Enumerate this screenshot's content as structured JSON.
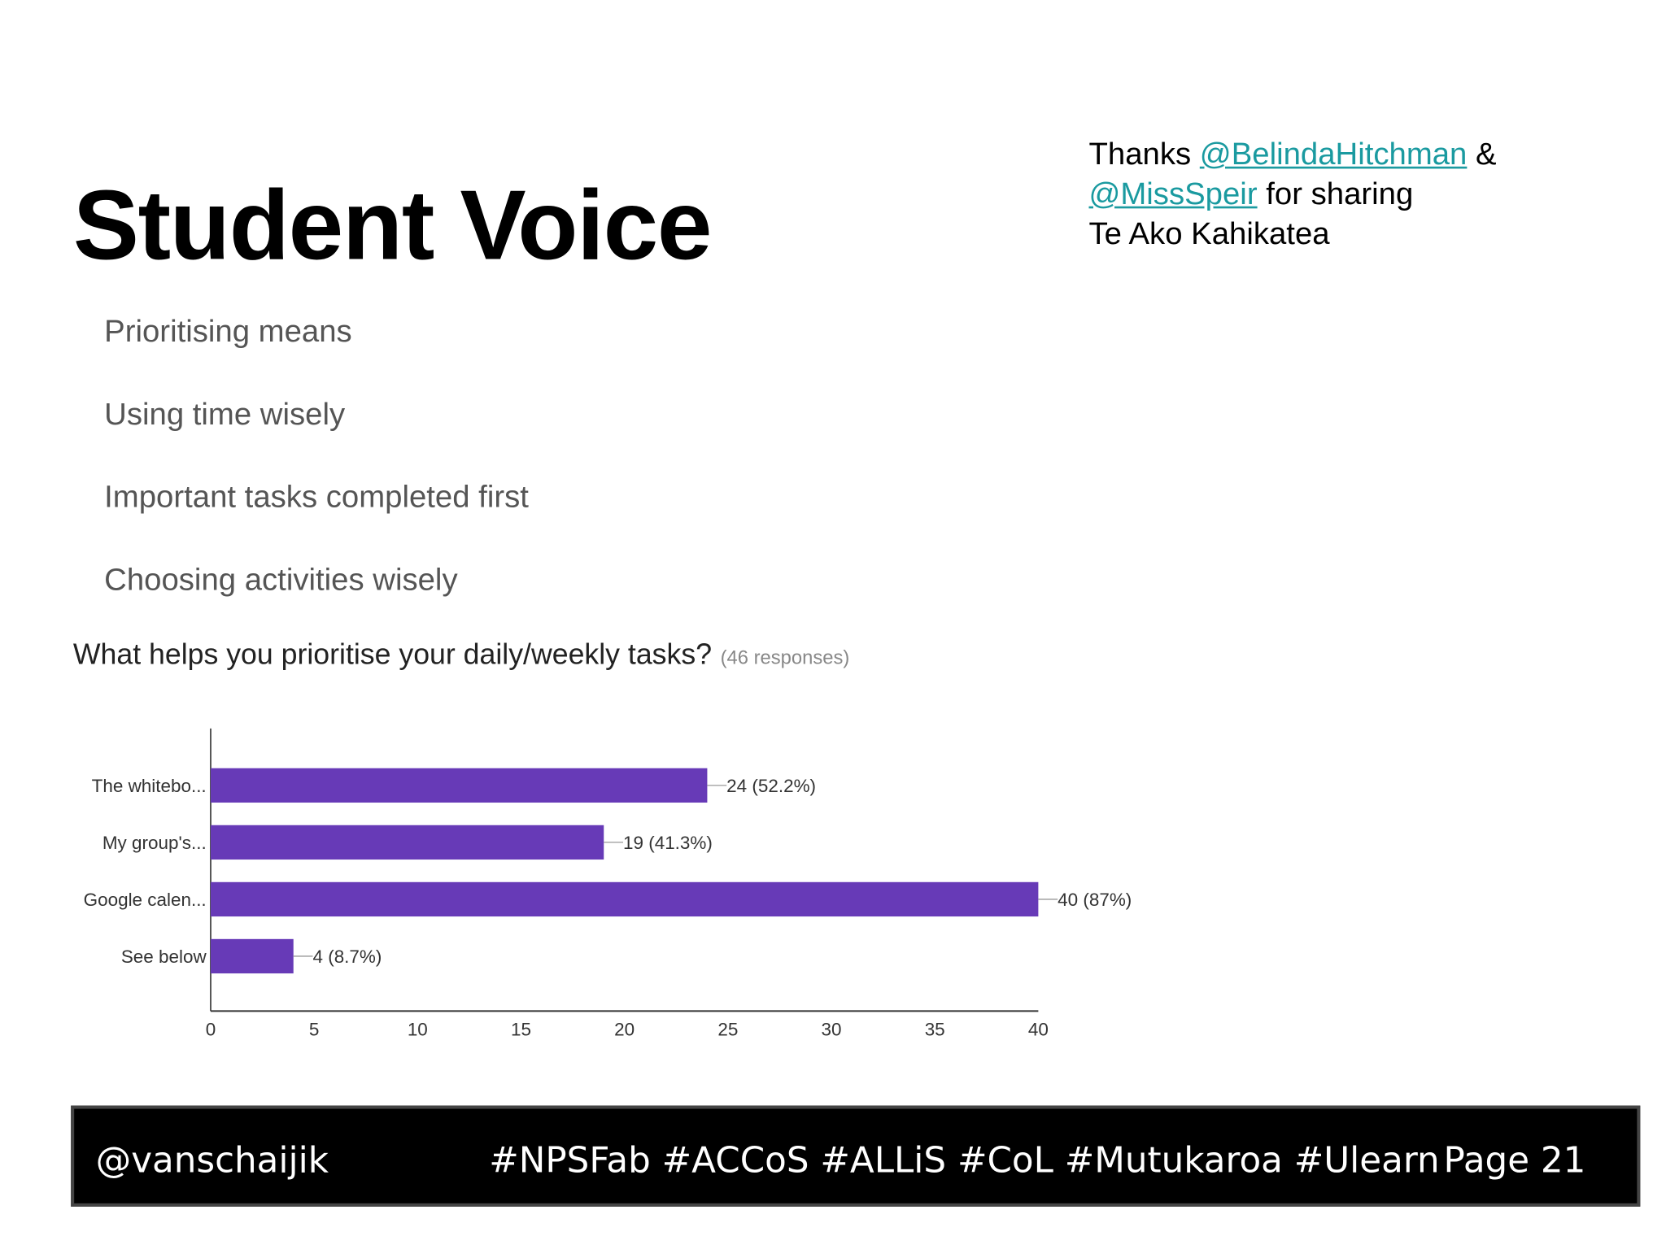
{
  "slide": {
    "title": "Student Voice",
    "credits": {
      "thanks": "Thanks ",
      "user1": "@BelindaHitchman",
      "amp": " &",
      "user2": "@MissSpeir",
      "for_sharing": " for sharing",
      "org": "Te Ako Kahikatea"
    },
    "bullets": [
      "Prioritising means",
      "Using time wisely",
      "Important tasks completed first",
      "Choosing activities wisely"
    ],
    "question": "What helps you prioritise your daily/weekly tasks?",
    "responses": "(46 responses)"
  },
  "chart_data": {
    "type": "bar",
    "orientation": "horizontal",
    "categories": [
      "The whitebo...",
      "My group's...",
      "Google calen...",
      "See below"
    ],
    "values": [
      24,
      19,
      40,
      4
    ],
    "data_labels": [
      "24 (52.2%)",
      "19 (41.3%)",
      "40 (87%)",
      "4 (8.7%)"
    ],
    "xlim": [
      0,
      40
    ],
    "xticks": [
      0,
      5,
      10,
      15,
      20,
      25,
      30,
      35,
      40
    ],
    "bar_color": "#673ab7",
    "grid": false
  },
  "footer": {
    "handle": "@vanschaijik",
    "hashtags": "#NPSFab #ACCoS  #ALLiS   #CoL #Mutukaroa #Ulearn",
    "page": "Page 21"
  }
}
